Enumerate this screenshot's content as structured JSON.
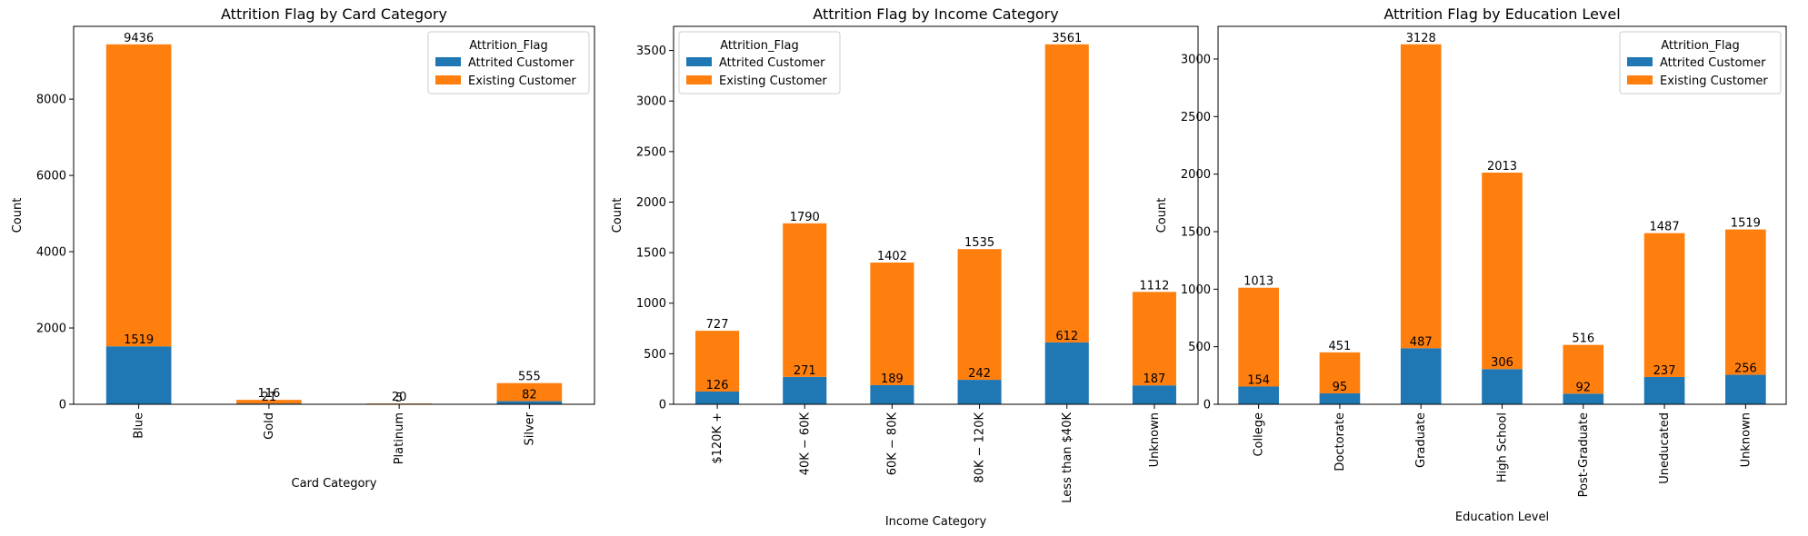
{
  "chart_data": [
    {
      "type": "bar",
      "stacked": true,
      "title": "Attrition Flag by Card Category",
      "xlabel": "Card Category",
      "ylabel": "Count",
      "categories": [
        "Blue",
        "Gold",
        "Platinum",
        "Silver"
      ],
      "series": [
        {
          "name": "Attrited Customer",
          "color": "#1f77b4",
          "values": [
            1519,
            21,
            5,
            82
          ]
        },
        {
          "name": "Existing Customer",
          "color": "#ff7f0e",
          "values": [
            7917,
            95,
            15,
            473
          ]
        }
      ],
      "stack_labels": {
        "bottom": [
          "1519",
          "21",
          "5",
          "82"
        ],
        "total": [
          "9436",
          "116",
          "20",
          "555"
        ]
      },
      "ylim": [
        0,
        9908
      ],
      "yticks": [
        0,
        2000,
        4000,
        6000,
        8000
      ],
      "legend": {
        "title": "Attrition_Flag",
        "placement": "top-right"
      },
      "grid": false
    },
    {
      "type": "bar",
      "stacked": true,
      "title": "Attrition Flag by Income Category",
      "xlabel": "Income Category",
      "ylabel": "Count",
      "categories": [
        "$120K +",
        "$40K - $60K",
        "$60K - $80K",
        "$80K - $120K",
        "Less than $40K",
        "Unknown"
      ],
      "tick_labels": [
        "$120K +",
        "40K − 60K",
        "60K − 80K",
        "80K − 120K",
        "Less than $40K",
        "Unknown"
      ],
      "series": [
        {
          "name": "Attrited Customer",
          "color": "#1f77b4",
          "values": [
            126,
            271,
            189,
            242,
            612,
            187
          ]
        },
        {
          "name": "Existing Customer",
          "color": "#ff7f0e",
          "values": [
            601,
            1519,
            1213,
            1293,
            2949,
            925
          ]
        }
      ],
      "stack_labels": {
        "bottom": [
          "126",
          "271",
          "189",
          "242",
          "612",
          "187"
        ],
        "total": [
          "727",
          "1790",
          "1402",
          "1535",
          "3561",
          "1112"
        ]
      },
      "ylim": [
        0,
        3739
      ],
      "yticks": [
        0,
        500,
        1000,
        1500,
        2000,
        2500,
        3000,
        3500
      ],
      "legend": {
        "title": "Attrition_Flag",
        "placement": "top-left"
      },
      "grid": false
    },
    {
      "type": "bar",
      "stacked": true,
      "title": "Attrition Flag by Education Level",
      "xlabel": "Education Level",
      "ylabel": "Count",
      "categories": [
        "College",
        "Doctorate",
        "Graduate",
        "High School",
        "Post-Graduate",
        "Uneducated",
        "Unknown"
      ],
      "series": [
        {
          "name": "Attrited Customer",
          "color": "#1f77b4",
          "values": [
            154,
            95,
            487,
            306,
            92,
            237,
            256
          ]
        },
        {
          "name": "Existing Customer",
          "color": "#ff7f0e",
          "values": [
            859,
            356,
            2641,
            1707,
            424,
            1250,
            1263
          ]
        }
      ],
      "stack_labels": {
        "bottom": [
          "154",
          "95",
          "487",
          "306",
          "92",
          "237",
          "256"
        ],
        "total": [
          "1013",
          "451",
          "3128",
          "2013",
          "516",
          "1487",
          "1519"
        ]
      },
      "ylim": [
        0,
        3284
      ],
      "yticks": [
        0,
        500,
        1000,
        1500,
        2000,
        2500,
        3000
      ],
      "legend": {
        "title": "Attrition_Flag",
        "placement": "top-right"
      },
      "grid": false
    }
  ]
}
